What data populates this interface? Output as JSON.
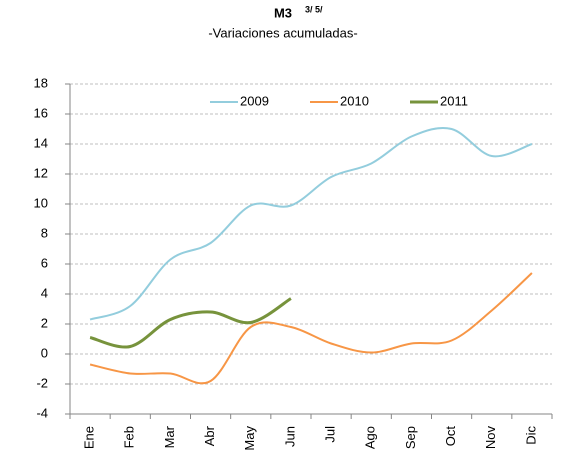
{
  "chart_data": {
    "type": "line",
    "title": "M3",
    "title_note": "3/ 5/",
    "subtitle": "-Variaciones acumuladas-",
    "categories": [
      "Ene",
      "Feb",
      "Mar",
      "Abr",
      "May",
      "Jun",
      "Jul",
      "Ago",
      "Sep",
      "Oct",
      "Nov",
      "Dic"
    ],
    "series": [
      {
        "name": "2009",
        "color": "#93cddd",
        "values": [
          2.3,
          3.2,
          6.3,
          7.4,
          9.9,
          9.9,
          11.8,
          12.7,
          14.5,
          15.0,
          13.2,
          14.0
        ]
      },
      {
        "name": "2010",
        "color": "#f79646",
        "values": [
          -0.7,
          -1.3,
          -1.3,
          -1.8,
          1.8,
          1.8,
          0.7,
          0.1,
          0.7,
          0.9,
          2.9,
          5.4
        ]
      },
      {
        "name": "2011",
        "color": "#77933c",
        "values": [
          1.1,
          0.5,
          2.3,
          2.8,
          2.1,
          3.7,
          null,
          null,
          null,
          null,
          null,
          null
        ]
      }
    ],
    "ylim": [
      -4,
      18
    ],
    "yticks": [
      -4,
      -2,
      0,
      2,
      4,
      6,
      8,
      10,
      12,
      14,
      16,
      18
    ],
    "grid": true,
    "legend": "top"
  }
}
